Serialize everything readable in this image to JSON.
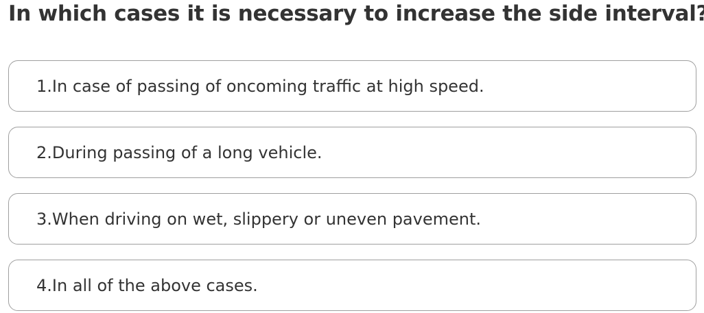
{
  "question": "In which cases it is necessary to increase the side interval?",
  "options": [
    "1.In case of passing of oncoming traffic at high speed.",
    "2.During passing of a long vehicle.",
    "3.When driving on wet, slippery or uneven pavement.",
    "4.In all of the above cases."
  ]
}
